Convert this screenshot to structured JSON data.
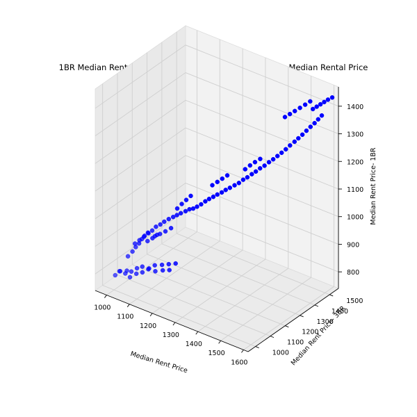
{
  "chart_data": {
    "type": "scatter3d",
    "title": "1BR Median Rental Price Vs. 3BR Median Rental Price  Vs. Median Rental Price",
    "xlabel": "Median Rent Price",
    "ylabel": "Median Rent Price- 3BR",
    "zlabel": "Median Rent Price- 1BR",
    "xlim": [
      950,
      1620
    ],
    "ylim": [
      950,
      1560
    ],
    "zlim": [
      740,
      1470
    ],
    "xticks": [
      "1000",
      "1100",
      "1200",
      "1300",
      "1400",
      "1500",
      "1600"
    ],
    "yticks": [
      "1000",
      "1100",
      "1200",
      "1300",
      "1400",
      "1500"
    ],
    "zticks": [
      "800",
      "900",
      "1000",
      "1100",
      "1200",
      "1300",
      "1400"
    ],
    "grid": true,
    "marker_color": "#0000ff",
    "points": [
      [
        1002,
        1005,
        792
      ],
      [
        1012,
        1018,
        805
      ],
      [
        1022,
        1008,
        812
      ],
      [
        1030,
        1030,
        798
      ],
      [
        1042,
        1022,
        815
      ],
      [
        1050,
        1040,
        808
      ],
      [
        1060,
        1015,
        800
      ],
      [
        1068,
        1050,
        822
      ],
      [
        1075,
        1035,
        810
      ],
      [
        1085,
        1060,
        830
      ],
      [
        1095,
        1045,
        818
      ],
      [
        1108,
        1065,
        826
      ],
      [
        1118,
        1055,
        836
      ],
      [
        1130,
        1075,
        844
      ],
      [
        1142,
        1060,
        832
      ],
      [
        1155,
        1085,
        850
      ],
      [
        1168,
        1070,
        840
      ],
      [
        1180,
        1092,
        858
      ],
      [
        1192,
        1078,
        846
      ],
      [
        1205,
        1100,
        866
      ],
      [
        1048,
        1020,
        870
      ],
      [
        1058,
        1035,
        885
      ],
      [
        1066,
        1045,
        900
      ],
      [
        1074,
        1055,
        912
      ],
      [
        1082,
        1062,
        928
      ],
      [
        1090,
        1068,
        940
      ],
      [
        1100,
        1075,
        952
      ],
      [
        1112,
        1085,
        960
      ],
      [
        1124,
        1092,
        975
      ],
      [
        1138,
        1100,
        985
      ],
      [
        1150,
        1108,
        996
      ],
      [
        1165,
        1115,
        1008
      ],
      [
        1178,
        1125,
        1016
      ],
      [
        1190,
        1132,
        1024
      ],
      [
        1202,
        1140,
        1032
      ],
      [
        1216,
        1150,
        1040
      ],
      [
        1228,
        1158,
        1048
      ],
      [
        1095,
        1080,
        918
      ],
      [
        1110,
        1090,
        930
      ],
      [
        1125,
        1098,
        944
      ],
      [
        1140,
        1060,
        958
      ],
      [
        1156,
        1070,
        968
      ],
      [
        1172,
        1082,
        978
      ],
      [
        1188,
        1095,
        990
      ],
      [
        1240,
        1165,
        1052
      ],
      [
        1252,
        1172,
        1060
      ],
      [
        1265,
        1180,
        1070
      ],
      [
        1278,
        1188,
        1082
      ],
      [
        1290,
        1195,
        1092
      ],
      [
        1302,
        1205,
        1100
      ],
      [
        1315,
        1212,
        1110
      ],
      [
        1328,
        1222,
        1118
      ],
      [
        1340,
        1230,
        1128
      ],
      [
        1352,
        1240,
        1136
      ],
      [
        1366,
        1250,
        1146
      ],
      [
        1380,
        1258,
        1156
      ],
      [
        1392,
        1268,
        1168
      ],
      [
        1405,
        1276,
        1178
      ],
      [
        1418,
        1286,
        1190
      ],
      [
        1430,
        1295,
        1200
      ],
      [
        1442,
        1305,
        1212
      ],
      [
        1455,
        1315,
        1222
      ],
      [
        1468,
        1325,
        1235
      ],
      [
        1480,
        1335,
        1246
      ],
      [
        1492,
        1345,
        1258
      ],
      [
        1504,
        1355,
        1270
      ],
      [
        1515,
        1366,
        1282
      ],
      [
        1526,
        1378,
        1295
      ],
      [
        1538,
        1390,
        1308
      ],
      [
        1548,
        1400,
        1320
      ],
      [
        1558,
        1412,
        1332
      ],
      [
        1568,
        1424,
        1345
      ],
      [
        1578,
        1436,
        1358
      ],
      [
        1588,
        1448,
        1370
      ],
      [
        1596,
        1460,
        1382
      ],
      [
        1604,
        1472,
        1394
      ],
      [
        1560,
        1480,
        1400
      ],
      [
        1570,
        1490,
        1408
      ],
      [
        1580,
        1500,
        1416
      ],
      [
        1590,
        1510,
        1424
      ],
      [
        1600,
        1520,
        1432
      ],
      [
        1612,
        1530,
        1440
      ],
      [
        1470,
        1430,
        1360
      ],
      [
        1485,
        1440,
        1372
      ],
      [
        1500,
        1450,
        1384
      ],
      [
        1515,
        1462,
        1396
      ],
      [
        1530,
        1474,
        1408
      ],
      [
        1544,
        1486,
        1420
      ],
      [
        1380,
        1300,
        1190
      ],
      [
        1395,
        1310,
        1205
      ],
      [
        1410,
        1320,
        1218
      ],
      [
        1425,
        1332,
        1230
      ],
      [
        1262,
        1260,
        1108
      ],
      [
        1276,
        1272,
        1120
      ],
      [
        1290,
        1284,
        1132
      ],
      [
        1304,
        1296,
        1144
      ],
      [
        1160,
        1180,
        1020
      ],
      [
        1172,
        1192,
        1036
      ],
      [
        1184,
        1204,
        1050
      ],
      [
        1196,
        1216,
        1064
      ],
      [
        1028,
        1098,
        880
      ],
      [
        1040,
        1110,
        892
      ],
      [
        1052,
        1122,
        904
      ],
      [
        1064,
        1134,
        916
      ]
    ]
  }
}
